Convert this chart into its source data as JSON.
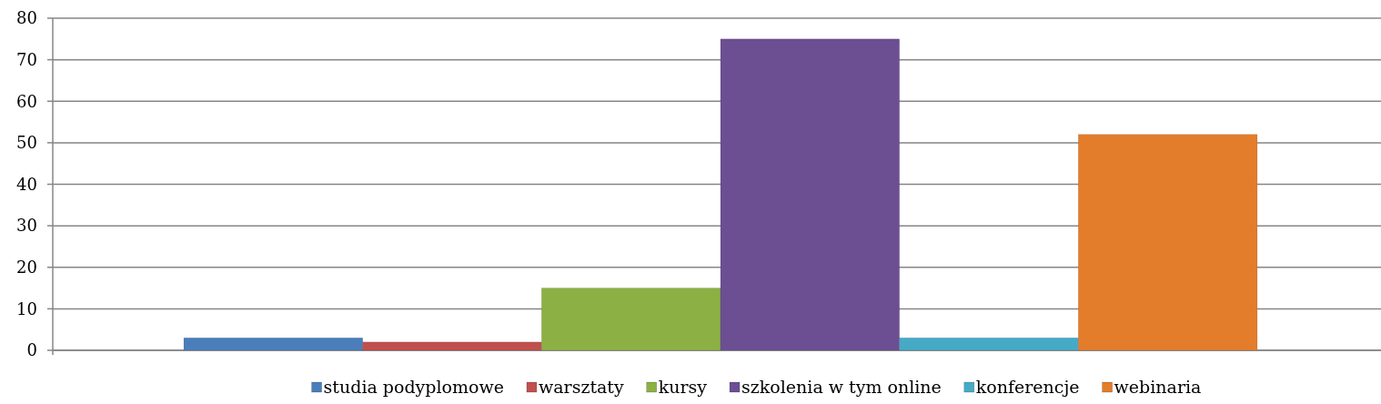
{
  "chart_data": {
    "type": "bar",
    "categories": [
      null
    ],
    "series": [
      {
        "name": "studia podyplomowe",
        "color": "#4a7ebb",
        "values": [
          3
        ]
      },
      {
        "name": "warsztaty",
        "color": "#c0504d",
        "values": [
          2
        ]
      },
      {
        "name": "kursy",
        "color": "#8cb043",
        "values": [
          15
        ]
      },
      {
        "name": "szkolenia w tym online",
        "color": "#6c4f93",
        "values": [
          75
        ]
      },
      {
        "name": "konferencje",
        "color": "#46aac6",
        "values": [
          3
        ]
      },
      {
        "name": "webinaria",
        "color": "#e37c2b",
        "values": [
          52
        ]
      }
    ],
    "ylim": [
      0,
      80
    ],
    "yticks": [
      0,
      10,
      20,
      30,
      40,
      50,
      60,
      70,
      80
    ],
    "grid": "y",
    "legend": "bottom"
  }
}
